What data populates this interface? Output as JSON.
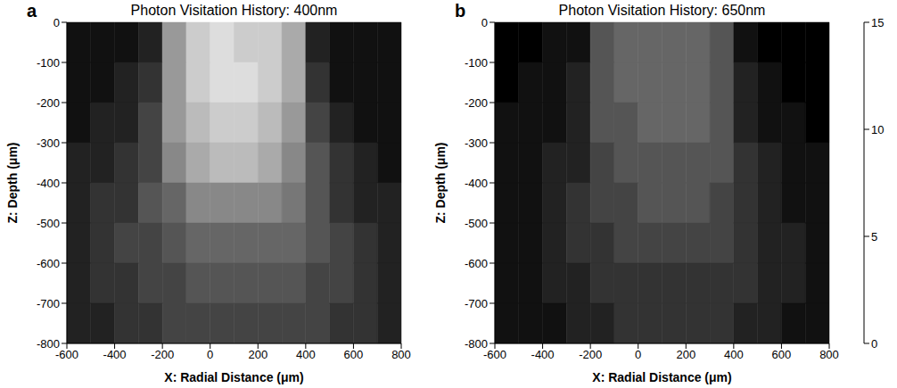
{
  "chart_data": [
    {
      "type": "heatmap",
      "title": "Photon Visitation History: 400nm",
      "panel_label": "a",
      "x_label": "X: Radial Distance (μm)",
      "y_label": "Z: Depth (μm)",
      "xlim": [
        -600,
        800
      ],
      "ylim": [
        -800,
        0
      ],
      "xticks": [
        -600,
        -400,
        -200,
        0,
        200,
        400,
        600,
        800
      ],
      "yticks": [
        0,
        -100,
        -200,
        -300,
        -400,
        -500,
        -600,
        -700,
        -800
      ],
      "cells": {
        "x_edges": [
          -600,
          -500,
          -400,
          -300,
          -200,
          -100,
          0,
          100,
          200,
          300,
          400,
          500,
          600,
          700,
          800
        ],
        "y_edges": [
          0,
          -100,
          -200,
          -300,
          -400,
          -500,
          -600,
          -700,
          -800
        ],
        "values": [
          [
            1,
            1,
            1,
            2,
            9,
            12,
            13,
            12,
            12,
            10,
            2,
            1,
            1,
            1
          ],
          [
            1,
            1,
            2,
            3,
            9,
            12,
            13,
            13,
            12,
            10,
            3,
            1,
            1,
            1
          ],
          [
            1,
            2,
            2,
            4,
            9,
            11,
            12,
            12,
            11,
            9,
            4,
            2,
            1,
            1
          ],
          [
            2,
            2,
            3,
            4,
            8,
            10,
            11,
            11,
            10,
            8,
            5,
            3,
            2,
            1
          ],
          [
            2,
            3,
            3,
            5,
            6,
            8,
            8,
            8,
            8,
            7,
            5,
            3,
            2,
            2
          ],
          [
            2,
            3,
            4,
            4,
            5,
            6,
            6,
            6,
            6,
            6,
            5,
            4,
            3,
            2
          ],
          [
            2,
            3,
            3,
            4,
            4,
            5,
            5,
            5,
            5,
            5,
            4,
            4,
            3,
            2
          ],
          [
            2,
            2,
            3,
            3,
            4,
            4,
            4,
            4,
            4,
            4,
            4,
            3,
            3,
            2
          ]
        ]
      }
    },
    {
      "type": "heatmap",
      "title": "Photon Visitation History: 650nm",
      "panel_label": "b",
      "x_label": "X: Radial Distance (μm)",
      "y_label": "Z: Depth (μm)",
      "xlim": [
        -600,
        800
      ],
      "ylim": [
        -800,
        0
      ],
      "xticks": [
        -600,
        -400,
        -200,
        0,
        200,
        400,
        600,
        800
      ],
      "yticks": [
        0,
        -100,
        -200,
        -300,
        -400,
        -500,
        -600,
        -700,
        -800
      ],
      "cells": {
        "x_edges": [
          -600,
          -500,
          -400,
          -300,
          -200,
          -100,
          0,
          100,
          200,
          300,
          400,
          500,
          600,
          700,
          800
        ],
        "y_edges": [
          0,
          -100,
          -200,
          -300,
          -400,
          -500,
          -600,
          -700,
          -800
        ],
        "values": [
          [
            0,
            0,
            1,
            1,
            5,
            6,
            6,
            6,
            6,
            5,
            1,
            0,
            0,
            0
          ],
          [
            0,
            1,
            1,
            2,
            5,
            6,
            6,
            6,
            6,
            5,
            2,
            1,
            0,
            0
          ],
          [
            1,
            1,
            1,
            2,
            5,
            5,
            6,
            6,
            6,
            5,
            2,
            1,
            1,
            0
          ],
          [
            1,
            1,
            2,
            2,
            4,
            5,
            5,
            5,
            5,
            5,
            3,
            2,
            1,
            1
          ],
          [
            1,
            1,
            2,
            3,
            4,
            4,
            5,
            5,
            5,
            4,
            3,
            2,
            1,
            1
          ],
          [
            1,
            1,
            2,
            3,
            3,
            4,
            4,
            4,
            4,
            4,
            3,
            2,
            2,
            1
          ],
          [
            1,
            1,
            2,
            2,
            3,
            3,
            3,
            3,
            3,
            3,
            3,
            2,
            2,
            1
          ],
          [
            1,
            1,
            1,
            2,
            2,
            3,
            3,
            3,
            3,
            3,
            2,
            2,
            1,
            1
          ]
        ]
      },
      "colorbar": {
        "range": [
          0,
          15
        ],
        "ticks": [
          0,
          5,
          10,
          15
        ]
      }
    }
  ]
}
